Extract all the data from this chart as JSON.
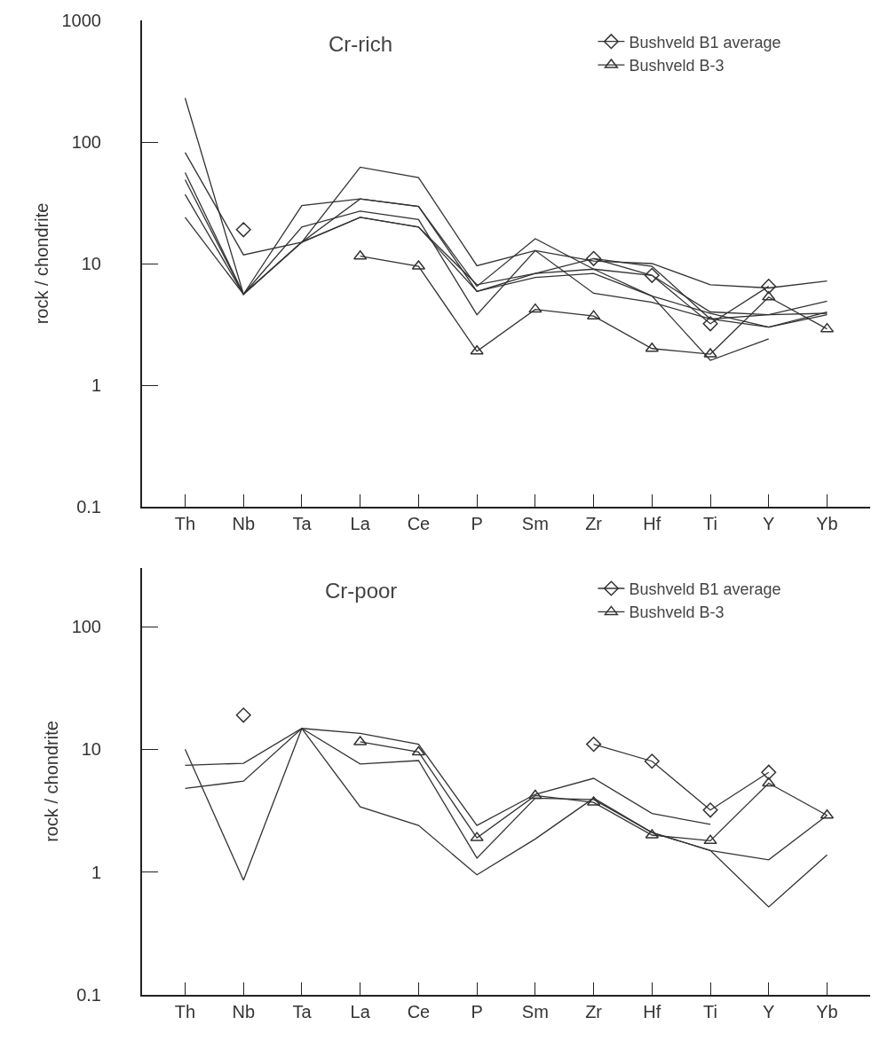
{
  "chart_data": [
    {
      "type": "line",
      "title": "Cr-rich",
      "ylabel": "rock / chondrite",
      "log": "y",
      "legend": "top right",
      "marker": "none",
      "line_style": "solid",
      "categories": [
        "Th",
        "Nb",
        "Ta",
        "La",
        "Ce",
        "P",
        "Sm",
        "Zr",
        "Hf",
        "Ti",
        "Y",
        "Yb"
      ],
      "ylim": [
        0.1,
        1000
      ],
      "yticks": [
        0.1,
        1,
        10,
        100,
        1000
      ],
      "series": [
        {
          "name": "Bushveld B1 average",
          "color": "#333333",
          "marker": "diamond",
          "values": [
            null,
            19,
            null,
            null,
            null,
            null,
            null,
            11,
            8,
            3.2,
            6.5,
            null
          ]
        },
        {
          "name": "Bushveld B-3",
          "color": "#333333",
          "marker": "triangle",
          "values": [
            null,
            null,
            null,
            11.5,
            9.5,
            1.9,
            4.2,
            3.7,
            2.0,
            1.8,
            5.3,
            2.9
          ]
        },
        {
          "color": "#333333",
          "values": [
            230,
            5.6,
            15,
            62,
            51,
            9.6,
            12.8,
            10.5,
            10,
            6.7,
            6.3,
            7.2
          ]
        },
        {
          "color": "#333333",
          "values": [
            82,
            11.8,
            15,
            34,
            29.5,
            6.5,
            16,
            9,
            5.4,
            3.9,
            3.0,
            4.0
          ]
        },
        {
          "color": "#333333",
          "values": [
            56,
            5.6,
            30,
            34,
            29.5,
            5.9,
            8.3,
            11,
            9.5,
            3.5,
            3.8,
            4.9
          ]
        },
        {
          "color": "#333333",
          "values": [
            49,
            5.6,
            20,
            27,
            23,
            3.8,
            12.8,
            5.7,
            4.8,
            3.5,
            3.0,
            3.8
          ]
        },
        {
          "color": "#333333",
          "values": [
            37,
            5.6,
            15,
            24,
            20,
            5.9,
            7.7,
            8.3,
            5.4,
            1.6,
            2.4,
            null
          ]
        },
        {
          "color": "#333333",
          "values": [
            24,
            5.6,
            15,
            24,
            20,
            6.7,
            8.3,
            9,
            8,
            4.0,
            3.8,
            3.9
          ]
        }
      ]
    },
    {
      "type": "line",
      "title": "Cr-poor",
      "ylabel": "rock / chondrite",
      "log": "y",
      "legend": "top right",
      "marker": "none",
      "line_style": "solid",
      "categories": [
        "Th",
        "Nb",
        "Ta",
        "La",
        "Ce",
        "P",
        "Sm",
        "Zr",
        "Hf",
        "Ti",
        "Y",
        "Yb"
      ],
      "ylim": [
        0.1,
        300
      ],
      "yticks": [
        0.1,
        1,
        10,
        100
      ],
      "series": [
        {
          "name": "Bushveld B1 average",
          "color": "#333333",
          "marker": "diamond",
          "values": [
            null,
            19,
            null,
            null,
            null,
            null,
            null,
            11,
            8,
            3.2,
            6.5,
            null
          ]
        },
        {
          "name": "Bushveld B-3",
          "color": "#333333",
          "marker": "triangle",
          "values": [
            null,
            null,
            null,
            11.5,
            9.5,
            1.9,
            4.2,
            3.7,
            2.0,
            1.8,
            5.3,
            2.9
          ]
        },
        {
          "color": "#333333",
          "values": [
            10,
            0.86,
            14.8,
            3.4,
            2.4,
            0.95,
            1.86,
            4.0,
            2.1,
            1.5,
            0.52,
            1.38
          ]
        },
        {
          "color": "#333333",
          "values": [
            7.4,
            7.7,
            14.8,
            13.5,
            11,
            2.4,
            4.3,
            5.8,
            3.0,
            2.45,
            null,
            null
          ]
        },
        {
          "color": "#333333",
          "values": [
            4.8,
            5.5,
            14.8,
            7.6,
            8.1,
            1.3,
            4.0,
            3.9,
            2.1,
            1.5,
            1.26,
            2.9
          ]
        }
      ]
    }
  ]
}
